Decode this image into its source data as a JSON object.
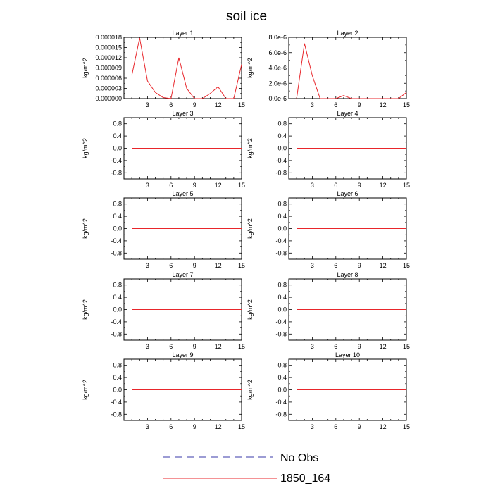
{
  "figure": {
    "title": "soil ice"
  },
  "legend": {
    "entries": [
      {
        "label": "No Obs",
        "style": "dashed",
        "color": "#3a3aa8"
      },
      {
        "label": "1850_164",
        "style": "solid",
        "color": "#e8262b"
      }
    ]
  },
  "colors": {
    "series_line": "#e8262b",
    "axis": "#000000"
  },
  "chart_data": [
    {
      "type": "line",
      "title": "Layer 1",
      "ylabel": "kg/m^2",
      "xlim": [
        0,
        15
      ],
      "ylim": [
        0,
        1.8e-05
      ],
      "xticks": [
        3,
        6,
        9,
        12,
        15
      ],
      "xtick_labels": [
        "3",
        "6",
        "9",
        "12",
        "15"
      ],
      "yticks": [
        0,
        3e-06,
        6e-06,
        9e-06,
        1.2e-05,
        1.5e-05,
        1.8e-05
      ],
      "ytick_labels": [
        "0.000000",
        "0.000003",
        "0.000006",
        "0.000009",
        "0.000012",
        "0.000015",
        "0.000018"
      ],
      "series": [
        {
          "name": "1850_164",
          "x": [
            1,
            2,
            3,
            4,
            5,
            6,
            7,
            8,
            9,
            10,
            11,
            12,
            13,
            14,
            15
          ],
          "y": [
            6.8e-06,
            1.78e-05,
            5.2e-06,
            1.8e-06,
            3e-07,
            0,
            1.2e-05,
            3e-06,
            0,
            0,
            1.5e-06,
            3.5e-06,
            0,
            0,
            1e-05
          ]
        }
      ]
    },
    {
      "type": "line",
      "title": "Layer 2",
      "ylabel": "kg/m^2",
      "xlim": [
        0,
        15
      ],
      "ylim": [
        0,
        8e-06
      ],
      "xticks": [
        3,
        6,
        9,
        12,
        15
      ],
      "xtick_labels": [
        "3",
        "6",
        "9",
        "12",
        "15"
      ],
      "yticks": [
        0,
        2e-06,
        4e-06,
        6e-06,
        8e-06
      ],
      "ytick_labels": [
        "0.0e-6",
        "2.0e-6",
        "4.0e-6",
        "6.0e-6",
        "8.0e-6"
      ],
      "series": [
        {
          "name": "1850_164",
          "x": [
            1,
            2,
            3,
            4,
            5,
            6,
            7,
            8,
            9,
            10,
            11,
            12,
            13,
            14,
            15
          ],
          "y": [
            0,
            7.2e-06,
            3e-06,
            0,
            0,
            0,
            4e-07,
            0,
            0,
            0,
            0,
            0,
            0,
            0,
            8e-07
          ]
        }
      ]
    },
    {
      "type": "line",
      "title": "Layer 3",
      "ylabel": "kg/m^2",
      "xlim": [
        0,
        15
      ],
      "ylim": [
        -1,
        1
      ],
      "xticks": [
        3,
        6,
        9,
        12,
        15
      ],
      "xtick_labels": [
        "3",
        "6",
        "9",
        "12",
        "15"
      ],
      "yticks": [
        -0.8,
        -0.4,
        0,
        0.4,
        0.8
      ],
      "ytick_labels": [
        "-0.8",
        "-0.4",
        "0.0",
        "0.4",
        "0.8"
      ],
      "series": [
        {
          "name": "1850_164",
          "x": [
            1,
            2,
            3,
            4,
            5,
            6,
            7,
            8,
            9,
            10,
            11,
            12,
            13,
            14,
            15
          ],
          "y": [
            0,
            0,
            0,
            0,
            0,
            0,
            0,
            0,
            0,
            0,
            0,
            0,
            0,
            0,
            0
          ]
        }
      ]
    },
    {
      "type": "line",
      "title": "Layer 4",
      "ylabel": "kg/m^2",
      "xlim": [
        0,
        15
      ],
      "ylim": [
        -1,
        1
      ],
      "xticks": [
        3,
        6,
        9,
        12,
        15
      ],
      "xtick_labels": [
        "3",
        "6",
        "9",
        "12",
        "15"
      ],
      "yticks": [
        -0.8,
        -0.4,
        0,
        0.4,
        0.8
      ],
      "ytick_labels": [
        "-0.8",
        "-0.4",
        "0.0",
        "0.4",
        "0.8"
      ],
      "series": [
        {
          "name": "1850_164",
          "x": [
            1,
            2,
            3,
            4,
            5,
            6,
            7,
            8,
            9,
            10,
            11,
            12,
            13,
            14,
            15
          ],
          "y": [
            0,
            0,
            0,
            0,
            0,
            0,
            0,
            0,
            0,
            0,
            0,
            0,
            0,
            0,
            0
          ]
        }
      ]
    },
    {
      "type": "line",
      "title": "Layer 5",
      "ylabel": "kg/m^2",
      "xlim": [
        0,
        15
      ],
      "ylim": [
        -1,
        1
      ],
      "xticks": [
        3,
        6,
        9,
        12,
        15
      ],
      "xtick_labels": [
        "3",
        "6",
        "9",
        "12",
        "15"
      ],
      "yticks": [
        -0.8,
        -0.4,
        0,
        0.4,
        0.8
      ],
      "ytick_labels": [
        "-0.8",
        "-0.4",
        "0.0",
        "0.4",
        "0.8"
      ],
      "series": [
        {
          "name": "1850_164",
          "x": [
            1,
            2,
            3,
            4,
            5,
            6,
            7,
            8,
            9,
            10,
            11,
            12,
            13,
            14,
            15
          ],
          "y": [
            0,
            0,
            0,
            0,
            0,
            0,
            0,
            0,
            0,
            0,
            0,
            0,
            0,
            0,
            0
          ]
        }
      ]
    },
    {
      "type": "line",
      "title": "Layer 6",
      "ylabel": "kg/m^2",
      "xlim": [
        0,
        15
      ],
      "ylim": [
        -1,
        1
      ],
      "xticks": [
        3,
        6,
        9,
        12,
        15
      ],
      "xtick_labels": [
        "3",
        "6",
        "9",
        "12",
        "15"
      ],
      "yticks": [
        -0.8,
        -0.4,
        0,
        0.4,
        0.8
      ],
      "ytick_labels": [
        "-0.8",
        "-0.4",
        "0.0",
        "0.4",
        "0.8"
      ],
      "series": [
        {
          "name": "1850_164",
          "x": [
            1,
            2,
            3,
            4,
            5,
            6,
            7,
            8,
            9,
            10,
            11,
            12,
            13,
            14,
            15
          ],
          "y": [
            0,
            0,
            0,
            0,
            0,
            0,
            0,
            0,
            0,
            0,
            0,
            0,
            0,
            0,
            0
          ]
        }
      ]
    },
    {
      "type": "line",
      "title": "Layer 7",
      "ylabel": "kg/m^2",
      "xlim": [
        0,
        15
      ],
      "ylim": [
        -1,
        1
      ],
      "xticks": [
        3,
        6,
        9,
        12,
        15
      ],
      "xtick_labels": [
        "3",
        "6",
        "9",
        "12",
        "15"
      ],
      "yticks": [
        -0.8,
        -0.4,
        0,
        0.4,
        0.8
      ],
      "ytick_labels": [
        "-0.8",
        "-0.4",
        "0.0",
        "0.4",
        "0.8"
      ],
      "series": [
        {
          "name": "1850_164",
          "x": [
            1,
            2,
            3,
            4,
            5,
            6,
            7,
            8,
            9,
            10,
            11,
            12,
            13,
            14,
            15
          ],
          "y": [
            0,
            0,
            0,
            0,
            0,
            0,
            0,
            0,
            0,
            0,
            0,
            0,
            0,
            0,
            0
          ]
        }
      ]
    },
    {
      "type": "line",
      "title": "Layer 8",
      "ylabel": "kg/m^2",
      "xlim": [
        0,
        15
      ],
      "ylim": [
        -1,
        1
      ],
      "xticks": [
        3,
        6,
        9,
        12,
        15
      ],
      "xtick_labels": [
        "3",
        "6",
        "9",
        "12",
        "15"
      ],
      "yticks": [
        -0.8,
        -0.4,
        0,
        0.4,
        0.8
      ],
      "ytick_labels": [
        "-0.8",
        "-0.4",
        "0.0",
        "0.4",
        "0.8"
      ],
      "series": [
        {
          "name": "1850_164",
          "x": [
            1,
            2,
            3,
            4,
            5,
            6,
            7,
            8,
            9,
            10,
            11,
            12,
            13,
            14,
            15
          ],
          "y": [
            0,
            0,
            0,
            0,
            0,
            0,
            0,
            0,
            0,
            0,
            0,
            0,
            0,
            0,
            0
          ]
        }
      ]
    },
    {
      "type": "line",
      "title": "Layer 9",
      "ylabel": "kg/m^2",
      "xlim": [
        0,
        15
      ],
      "ylim": [
        -1,
        1
      ],
      "xticks": [
        3,
        6,
        9,
        12,
        15
      ],
      "xtick_labels": [
        "3",
        "6",
        "9",
        "12",
        "15"
      ],
      "yticks": [
        -0.8,
        -0.4,
        0,
        0.4,
        0.8
      ],
      "ytick_labels": [
        "-0.8",
        "-0.4",
        "0.0",
        "0.4",
        "0.8"
      ],
      "series": [
        {
          "name": "1850_164",
          "x": [
            1,
            2,
            3,
            4,
            5,
            6,
            7,
            8,
            9,
            10,
            11,
            12,
            13,
            14,
            15
          ],
          "y": [
            0,
            0,
            0,
            0,
            0,
            0,
            0,
            0,
            0,
            0,
            0,
            0,
            0,
            0,
            0
          ]
        }
      ]
    },
    {
      "type": "line",
      "title": "Layer 10",
      "ylabel": "kg/m^2",
      "xlim": [
        0,
        15
      ],
      "ylim": [
        -1,
        1
      ],
      "xticks": [
        3,
        6,
        9,
        12,
        15
      ],
      "xtick_labels": [
        "3",
        "6",
        "9",
        "12",
        "15"
      ],
      "yticks": [
        -0.8,
        -0.4,
        0,
        0.4,
        0.8
      ],
      "ytick_labels": [
        "-0.8",
        "-0.4",
        "0.0",
        "0.4",
        "0.8"
      ],
      "series": [
        {
          "name": "1850_164",
          "x": [
            1,
            2,
            3,
            4,
            5,
            6,
            7,
            8,
            9,
            10,
            11,
            12,
            13,
            14,
            15
          ],
          "y": [
            0,
            0,
            0,
            0,
            0,
            0,
            0,
            0,
            0,
            0,
            0,
            0,
            0,
            0,
            0
          ]
        }
      ]
    }
  ]
}
